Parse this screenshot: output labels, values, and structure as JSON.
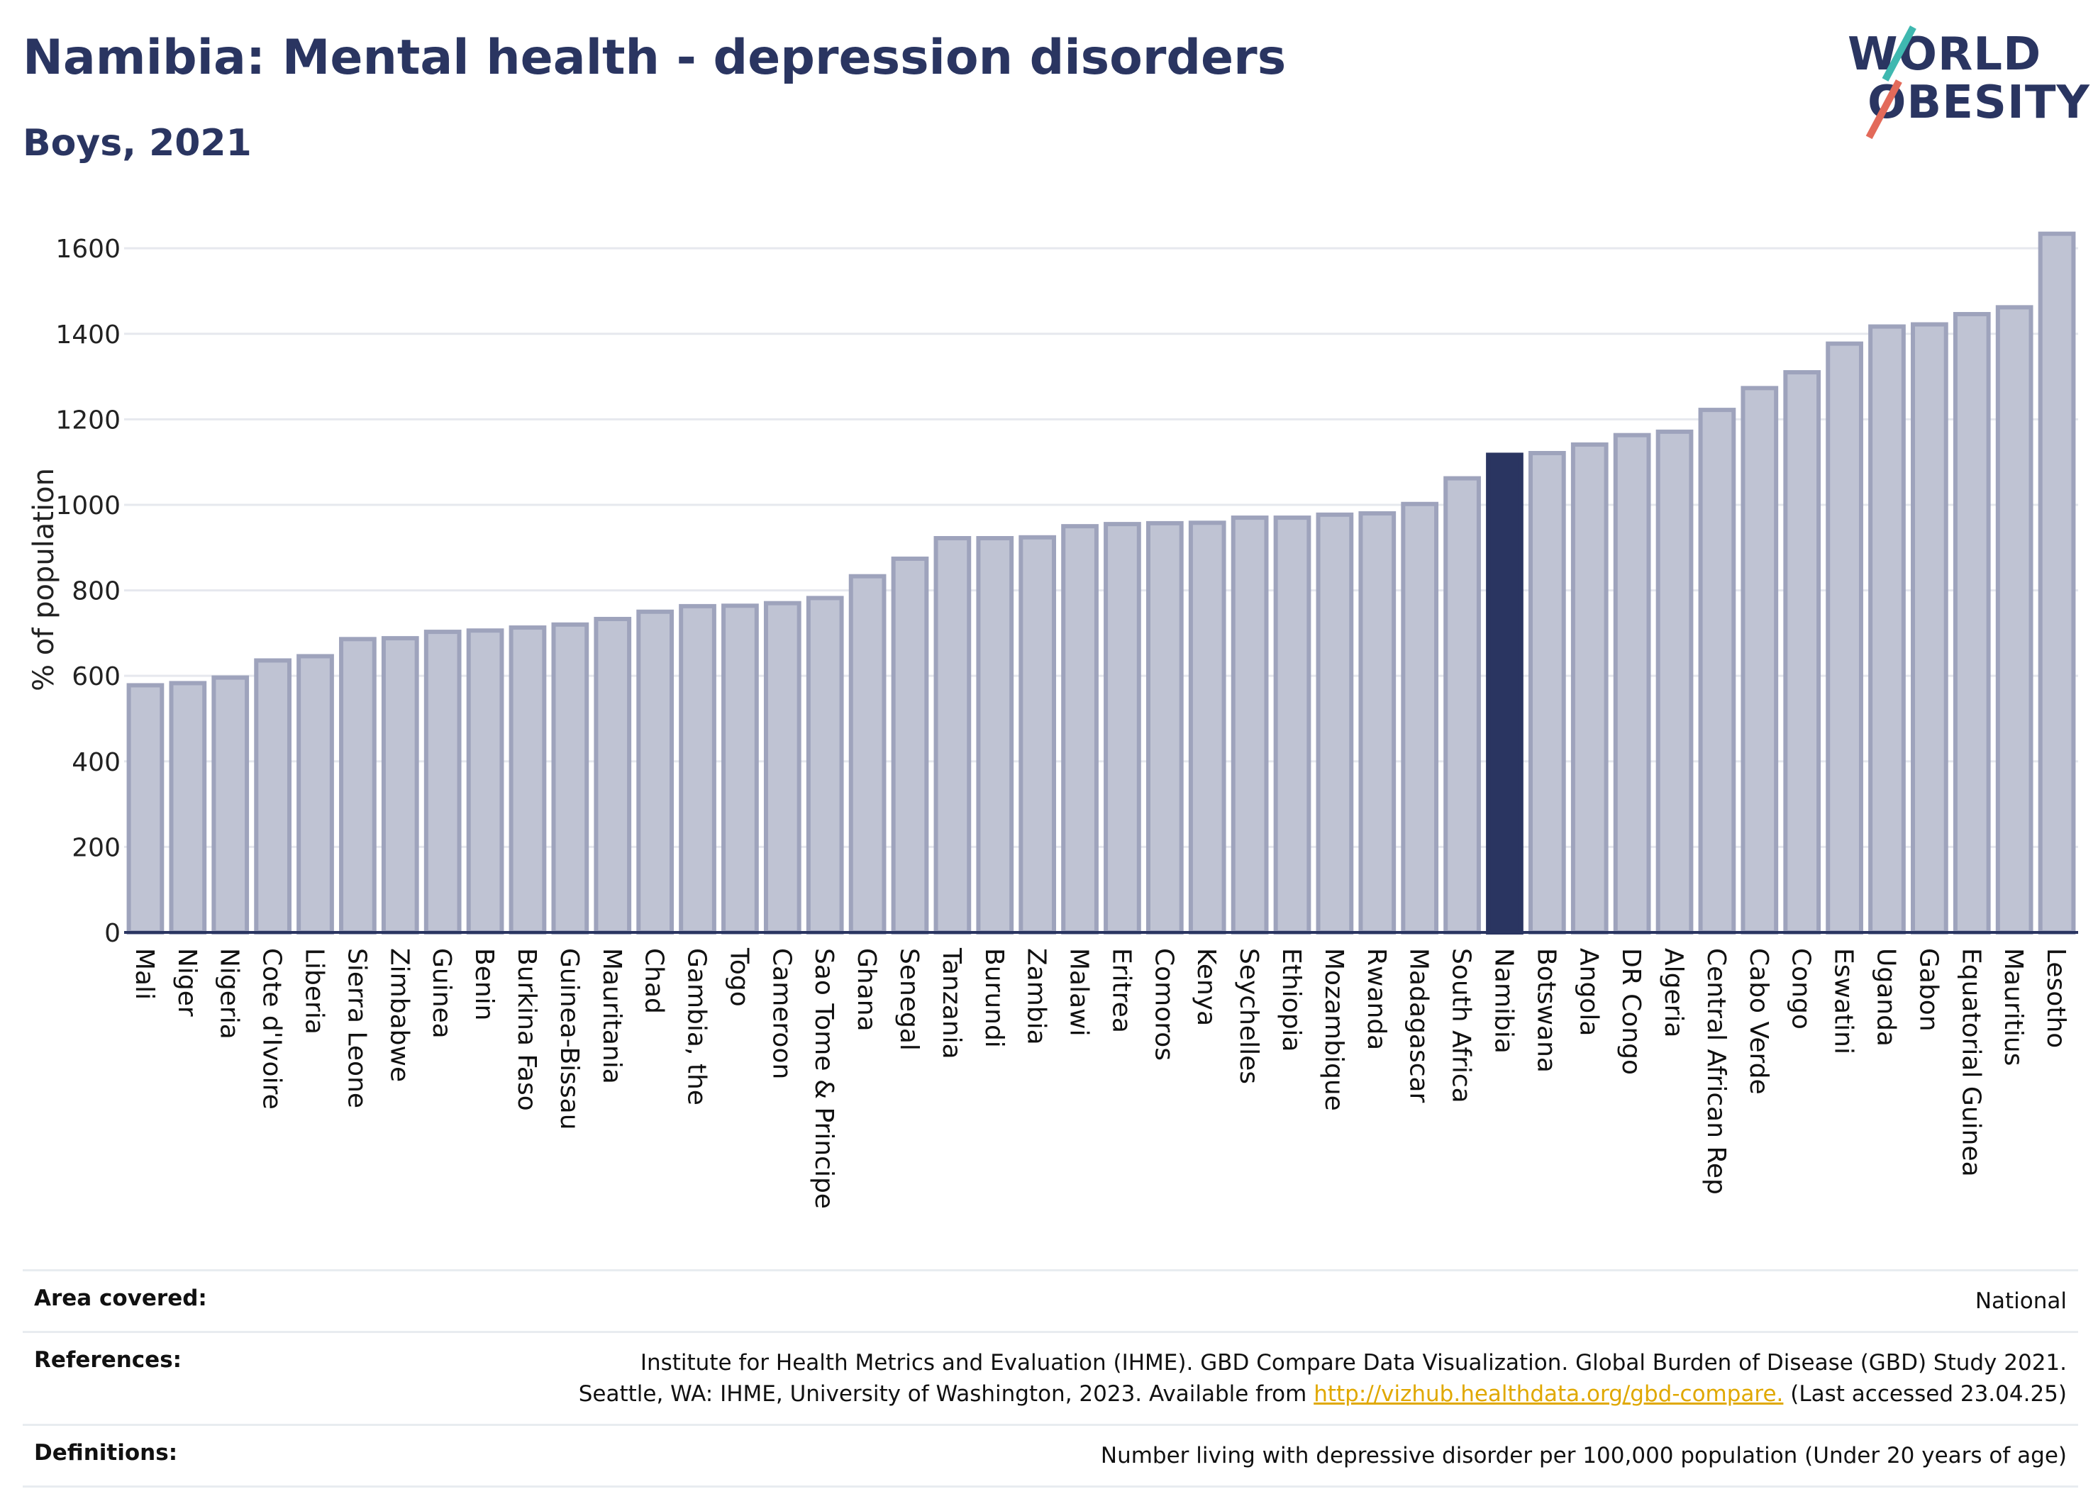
{
  "header": {
    "title": "Namibia: Mental health - depression disorders",
    "subtitle": "Boys, 2021",
    "logo_line1": "WORLD",
    "logo_line2": "OBESITY"
  },
  "colors": {
    "primary": "#2a3561",
    "bar_fill": "#bfc3d3",
    "bar_stroke": "#9ea3bc",
    "highlight": "#2a3561",
    "logo_teal": "#3fb8b0",
    "logo_red": "#e36a5a",
    "link": "#e0a800"
  },
  "chart_data": {
    "type": "bar",
    "ylabel": "% of population",
    "xlabel": "",
    "ylim": [
      0,
      1650
    ],
    "yticks": [
      0,
      200,
      400,
      600,
      800,
      1000,
      1200,
      1400,
      1600
    ],
    "grid": true,
    "highlight": "Namibia",
    "categories": [
      "Mali",
      "Niger",
      "Nigeria",
      "Cote d'Ivoire",
      "Liberia",
      "Sierra Leone",
      "Zimbabwe",
      "Guinea",
      "Benin",
      "Burkina Faso",
      "Guinea-Bissau",
      "Mauritania",
      "Chad",
      "Gambia, the",
      "Togo",
      "Cameroon",
      "Sao Tome & Principe",
      "Ghana",
      "Senegal",
      "Tanzania",
      "Burundi",
      "Zambia",
      "Malawi",
      "Eritrea",
      "Comoros",
      "Kenya",
      "Seychelles",
      "Ethiopia",
      "Mozambique",
      "Rwanda",
      "Madagascar",
      "South Africa",
      "Namibia",
      "Botswana",
      "Angola",
      "DR Congo",
      "Algeria",
      "Central African Rep",
      "Cabo Verde",
      "Congo",
      "Eswatini",
      "Uganda",
      "Gabon",
      "Equatorial Guinea",
      "Mauritius",
      "Lesotho"
    ],
    "values": [
      578,
      583,
      596,
      636,
      646,
      686,
      688,
      703,
      706,
      713,
      720,
      733,
      750,
      763,
      764,
      770,
      782,
      833,
      874,
      922,
      922,
      924,
      950,
      955,
      957,
      958,
      970,
      970,
      977,
      980,
      1002,
      1062,
      1117,
      1121,
      1141,
      1163,
      1171,
      1222,
      1273,
      1310,
      1377,
      1417,
      1422,
      1446,
      1462,
      1634
    ]
  },
  "info": {
    "area_label": "Area covered:",
    "area_value": "National",
    "references_label": "References:",
    "references_line1": "Institute for Health Metrics and Evaluation (IHME). GBD Compare Data Visualization. Global Burden of Disease (GBD) Study 2021.",
    "references_line2_pre": "Seattle, WA: IHME, University of Washington, 2023. Available from ",
    "references_link": "http://vizhub.healthdata.org/gbd-compare.",
    "references_line2_post": " (Last accessed 23.04.25)",
    "definitions_label": "Definitions:",
    "definitions_value": "Number living with depressive disorder per 100,000 population (Under 20 years of age)"
  }
}
